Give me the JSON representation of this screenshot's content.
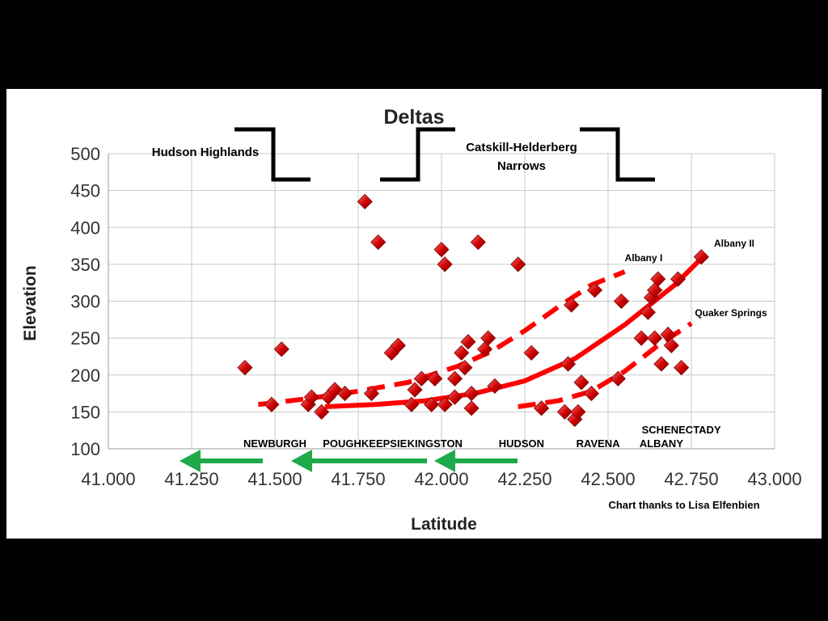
{
  "chart_data": {
    "type": "scatter",
    "title": "Deltas",
    "xlabel": "Latitude",
    "ylabel": "Elevation",
    "xlim": [
      41.0,
      43.0
    ],
    "ylim": [
      100,
      500
    ],
    "x_ticks": [
      "41.000",
      "41.250",
      "41.500",
      "41.750",
      "42.000",
      "42.250",
      "42.500",
      "42.750",
      "43.000"
    ],
    "y_ticks": [
      "100",
      "150",
      "200",
      "250",
      "300",
      "350",
      "400",
      "450",
      "500"
    ],
    "x_tick_values": [
      41.0,
      41.25,
      41.5,
      41.75,
      42.0,
      42.25,
      42.5,
      42.75,
      43.0
    ],
    "y_tick_values": [
      100,
      150,
      200,
      250,
      300,
      350,
      400,
      450,
      500
    ],
    "grid": true,
    "marker_color": "#cc0000",
    "line_color": "#ff0000",
    "arrow_color": "#1faa4a",
    "points": [
      {
        "x": 41.41,
        "y": 210
      },
      {
        "x": 41.49,
        "y": 160
      },
      {
        "x": 41.52,
        "y": 235
      },
      {
        "x": 41.6,
        "y": 160
      },
      {
        "x": 41.61,
        "y": 170
      },
      {
        "x": 41.64,
        "y": 150
      },
      {
        "x": 41.66,
        "y": 170
      },
      {
        "x": 41.68,
        "y": 180
      },
      {
        "x": 41.71,
        "y": 175
      },
      {
        "x": 41.77,
        "y": 435
      },
      {
        "x": 41.79,
        "y": 175
      },
      {
        "x": 41.81,
        "y": 380
      },
      {
        "x": 41.85,
        "y": 230
      },
      {
        "x": 41.87,
        "y": 240
      },
      {
        "x": 41.91,
        "y": 160
      },
      {
        "x": 41.92,
        "y": 180
      },
      {
        "x": 41.94,
        "y": 195
      },
      {
        "x": 41.97,
        "y": 160
      },
      {
        "x": 41.98,
        "y": 195
      },
      {
        "x": 42.0,
        "y": 370
      },
      {
        "x": 42.01,
        "y": 350
      },
      {
        "x": 42.01,
        "y": 160
      },
      {
        "x": 42.04,
        "y": 170
      },
      {
        "x": 42.04,
        "y": 195
      },
      {
        "x": 42.06,
        "y": 230
      },
      {
        "x": 42.07,
        "y": 210
      },
      {
        "x": 42.08,
        "y": 245
      },
      {
        "x": 42.09,
        "y": 155
      },
      {
        "x": 42.09,
        "y": 175
      },
      {
        "x": 42.11,
        "y": 380
      },
      {
        "x": 42.13,
        "y": 235
      },
      {
        "x": 42.14,
        "y": 250
      },
      {
        "x": 42.16,
        "y": 185
      },
      {
        "x": 42.23,
        "y": 350
      },
      {
        "x": 42.27,
        "y": 230
      },
      {
        "x": 42.3,
        "y": 155
      },
      {
        "x": 42.37,
        "y": 150
      },
      {
        "x": 42.38,
        "y": 215
      },
      {
        "x": 42.39,
        "y": 295
      },
      {
        "x": 42.4,
        "y": 140
      },
      {
        "x": 42.41,
        "y": 150
      },
      {
        "x": 42.42,
        "y": 190
      },
      {
        "x": 42.45,
        "y": 175
      },
      {
        "x": 42.46,
        "y": 315
      },
      {
        "x": 42.53,
        "y": 195
      },
      {
        "x": 42.54,
        "y": 300
      },
      {
        "x": 42.6,
        "y": 250
      },
      {
        "x": 42.62,
        "y": 285
      },
      {
        "x": 42.63,
        "y": 305
      },
      {
        "x": 42.64,
        "y": 315
      },
      {
        "x": 42.65,
        "y": 330
      },
      {
        "x": 42.64,
        "y": 250
      },
      {
        "x": 42.66,
        "y": 215
      },
      {
        "x": 42.68,
        "y": 255
      },
      {
        "x": 42.69,
        "y": 240
      },
      {
        "x": 42.71,
        "y": 330
      },
      {
        "x": 42.72,
        "y": 210
      },
      {
        "x": 42.78,
        "y": 360
      }
    ],
    "trend_lines": [
      {
        "name": "Albany II",
        "style": "solid",
        "x": [
          41.65,
          41.8,
          41.95,
          42.1,
          42.25,
          42.4,
          42.55,
          42.7,
          42.78
        ],
        "y": [
          157,
          160,
          165,
          175,
          192,
          222,
          268,
          322,
          358
        ]
      },
      {
        "name": "Albany I",
        "style": "dashed",
        "x": [
          41.45,
          41.6,
          41.75,
          41.9,
          42.05,
          42.15,
          42.25,
          42.35,
          42.45,
          42.55
        ],
        "y": [
          160,
          168,
          178,
          190,
          212,
          232,
          260,
          292,
          322,
          340
        ]
      },
      {
        "name": "Quaker Springs",
        "style": "dashed",
        "x": [
          42.23,
          42.35,
          42.45,
          42.55,
          42.65,
          42.75
        ],
        "y": [
          157,
          165,
          178,
          205,
          240,
          270
        ]
      }
    ],
    "annotations": {
      "hudson_highlands": "Hudson Highlands",
      "catskill_line1": "Catskill-Helderberg",
      "catskill_line2": "Narrows",
      "albany_i": "Albany I",
      "albany_ii": "Albany II",
      "quaker_springs": "Quaker Springs",
      "credit": "Chart thanks to Lisa Elfenbien"
    },
    "places": [
      {
        "name": "NEWBURGH",
        "x": 41.5
      },
      {
        "name": "POUGHKEEPSIE",
        "x": 41.77
      },
      {
        "name": "KINGSTON",
        "x": 41.98
      },
      {
        "name": "HUDSON",
        "x": 42.24
      },
      {
        "name": "RAVENA",
        "x": 42.47
      },
      {
        "name": "SCHENECTADY",
        "x": 42.72
      },
      {
        "name": "ALBANY",
        "x": 42.66
      }
    ]
  }
}
